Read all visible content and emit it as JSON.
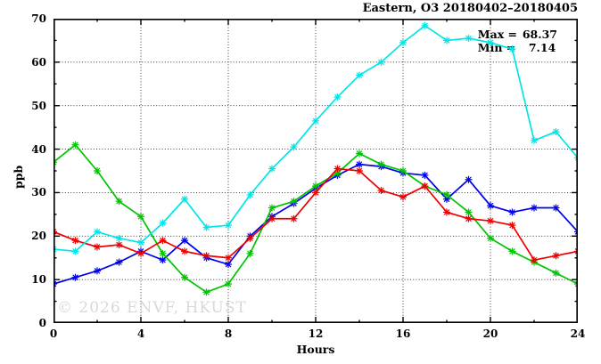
{
  "title": "Eastern, O3 20180402–20180405",
  "annotation": {
    "max_label": "Max =",
    "max_value": "68.37",
    "min_label": "Min =",
    "min_value": "7.14"
  },
  "watermark": "© 2026 ENVF, HKUST",
  "chart_data": {
    "type": "line",
    "title": "Eastern, O3 20180402–20180405",
    "xlabel": "Hours",
    "ylabel": "ppb",
    "xlim": [
      0,
      24
    ],
    "ylim": [
      0,
      70
    ],
    "x_ticks": [
      0,
      4,
      8,
      12,
      16,
      20,
      24
    ],
    "y_ticks": [
      0,
      10,
      20,
      30,
      40,
      50,
      60,
      70
    ],
    "x_minor_step": 2,
    "y_minor_step": 5,
    "grid": "dotted-at-major-ticks",
    "legend_position": "none",
    "marker": "asterisk",
    "stats": {
      "max": 68.37,
      "min": 7.14
    },
    "x": [
      0,
      1,
      2,
      3,
      4,
      5,
      6,
      7,
      8,
      9,
      10,
      11,
      12,
      13,
      14,
      15,
      16,
      17,
      18,
      19,
      20,
      21,
      22,
      23,
      24
    ],
    "series": [
      {
        "name": "day-1-blue",
        "color": "#0000ee",
        "values": [
          9,
          10.5,
          12,
          14,
          16.5,
          14.5,
          19,
          15,
          13.5,
          20,
          24.5,
          27.5,
          31,
          34,
          36.5,
          36,
          34.5,
          34,
          28.5,
          33,
          27,
          25.5,
          26.5,
          26.5,
          21
        ]
      },
      {
        "name": "day-2-green",
        "color": "#00c400",
        "values": [
          37,
          41,
          35,
          28,
          24.5,
          16,
          10.5,
          7.1,
          9,
          16,
          26.5,
          28,
          31.5,
          34.5,
          39,
          36.5,
          35,
          31.5,
          29.5,
          25.5,
          19.5,
          16.5,
          14,
          11.5,
          9
        ]
      },
      {
        "name": "day-3-red",
        "color": "#ee0000",
        "values": [
          21,
          19,
          17.5,
          18,
          16,
          19,
          16.5,
          15.5,
          15,
          19.5,
          24,
          24,
          30,
          35.5,
          35,
          30.5,
          29,
          31.5,
          25.5,
          24,
          23.5,
          22.5,
          14.5,
          15.5,
          16.5
        ]
      },
      {
        "name": "day-4-cyan",
        "color": "#00e6e6",
        "values": [
          17,
          16.5,
          21,
          19.5,
          18.5,
          23,
          28.5,
          22,
          22.5,
          29.5,
          35.5,
          40.5,
          46.5,
          52,
          57,
          60,
          64.5,
          68.4,
          65,
          65.5,
          64.5,
          63,
          42,
          44,
          38
        ]
      }
    ]
  }
}
